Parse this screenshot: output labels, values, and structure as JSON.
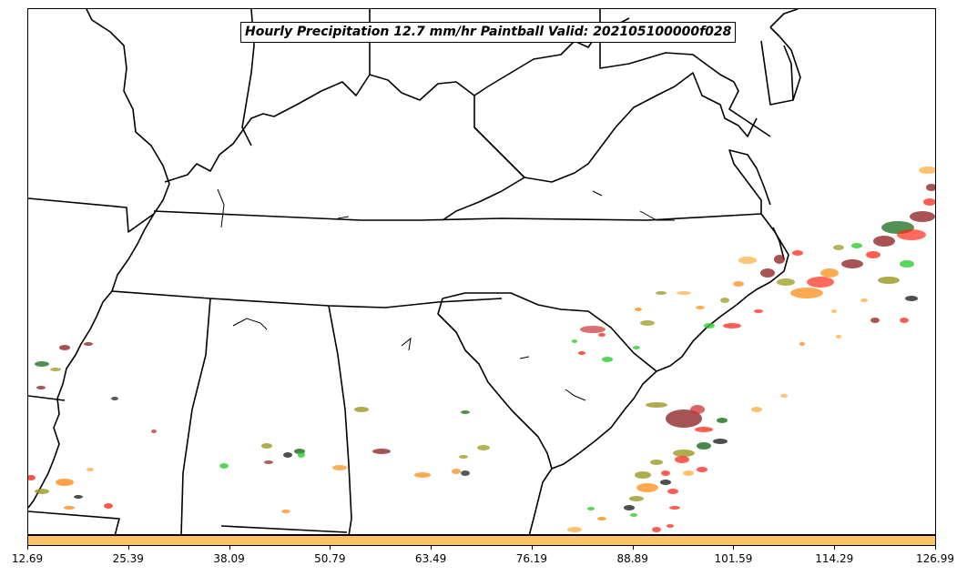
{
  "title": "Hourly Precipitation 12.7 mm/hr Paintball Valid: 202105100000f028",
  "colorbar": {
    "color": "#ffc266",
    "ticks": [
      "12.69",
      "25.39",
      "38.09",
      "50.79",
      "63.49",
      "76.19",
      "88.89",
      "101.59",
      "114.29",
      "126.99"
    ]
  },
  "colors": {
    "borders": "#000000",
    "members": [
      "#ff2a1a",
      "#ff8c1a",
      "#2ecc2e",
      "#8b1a1a",
      "#999922",
      "#1a6b1a",
      "#222222",
      "#ffb347",
      "#cc3333"
    ]
  }
}
